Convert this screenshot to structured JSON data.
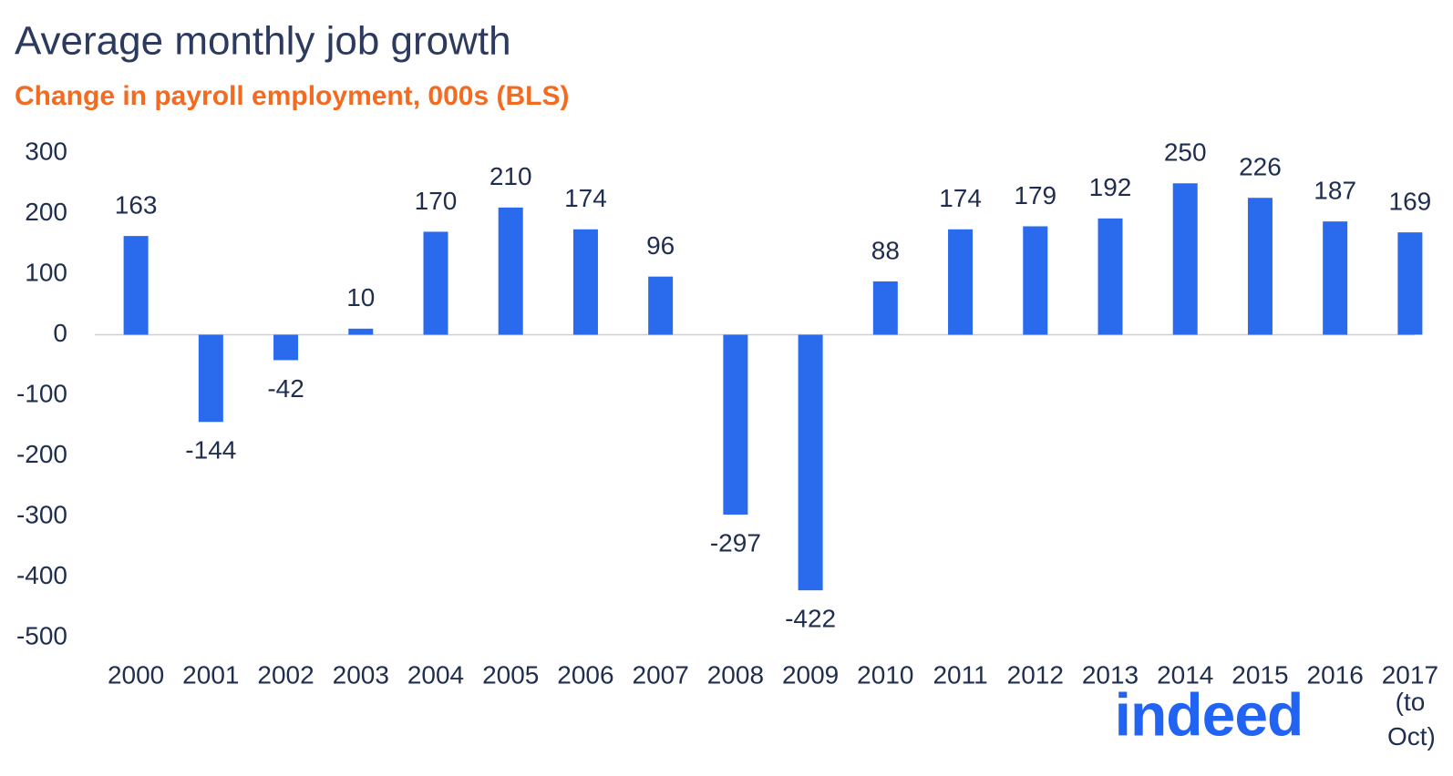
{
  "chart_data": {
    "type": "bar",
    "title": "Average monthly job growth",
    "subtitle": "Change in payroll employment, 000s (BLS)",
    "categories": [
      "2000",
      "2001",
      "2002",
      "2003",
      "2004",
      "2005",
      "2006",
      "2007",
      "2008",
      "2009",
      "2010",
      "2011",
      "2012",
      "2013",
      "2014",
      "2015",
      "2016",
      "2017"
    ],
    "values": [
      163,
      -144,
      -42,
      10,
      170,
      210,
      174,
      96,
      -297,
      -422,
      88,
      174,
      179,
      192,
      250,
      226,
      187,
      169
    ],
    "color": "#2a6bed",
    "ylim": [
      -500,
      300
    ],
    "yticks": [
      -500,
      -400,
      -300,
      -200,
      -100,
      0,
      100,
      200,
      300
    ],
    "grid": false,
    "annotations": [
      "(to Oct)"
    ],
    "logo": "indeed"
  }
}
